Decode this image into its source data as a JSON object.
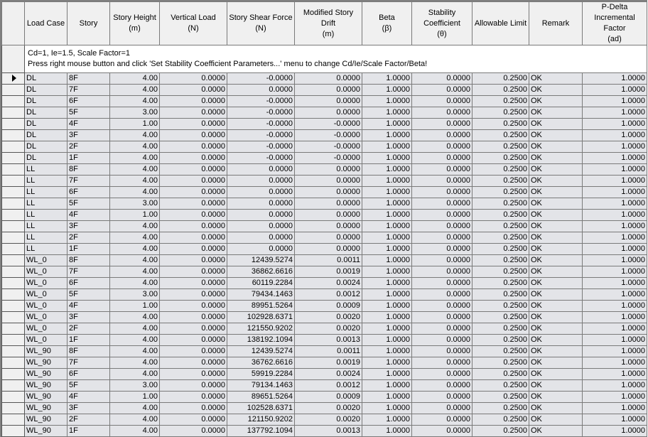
{
  "headers": [
    {
      "key": "load_case",
      "label": "Load Case"
    },
    {
      "key": "story",
      "label": "Story"
    },
    {
      "key": "story_height",
      "label": "Story Height\n(m)"
    },
    {
      "key": "vertical_load",
      "label": "Vertical Load\n(N)"
    },
    {
      "key": "story_shear",
      "label": "Story Shear Force\n(N)"
    },
    {
      "key": "drift",
      "label": "Modified Story Drift\n(m)"
    },
    {
      "key": "beta",
      "label": "Beta\n(β)"
    },
    {
      "key": "stability",
      "label": "Stability\nCoefficient\n(θ)"
    },
    {
      "key": "allowable",
      "label": "Allowable Limit"
    },
    {
      "key": "remark",
      "label": "Remark"
    },
    {
      "key": "pdelta",
      "label": "P-Delta\nIncremental\nFactor\n(ad)"
    }
  ],
  "info": {
    "line1": "Cd=1,  Ie=1.5,  Scale Factor=1",
    "line2": "Press right mouse button and click 'Set Stability Coefficient Parameters...' menu to change Cd/Ie/Scale Factor/Beta!"
  },
  "selected_row": 0,
  "rows": [
    [
      "DL",
      "8F",
      "4.00",
      "0.0000",
      "-0.0000",
      "0.0000",
      "1.0000",
      "0.0000",
      "0.2500",
      "OK",
      "1.0000"
    ],
    [
      "DL",
      "7F",
      "4.00",
      "0.0000",
      "0.0000",
      "0.0000",
      "1.0000",
      "0.0000",
      "0.2500",
      "OK",
      "1.0000"
    ],
    [
      "DL",
      "6F",
      "4.00",
      "0.0000",
      "-0.0000",
      "0.0000",
      "1.0000",
      "0.0000",
      "0.2500",
      "OK",
      "1.0000"
    ],
    [
      "DL",
      "5F",
      "3.00",
      "0.0000",
      "-0.0000",
      "0.0000",
      "1.0000",
      "0.0000",
      "0.2500",
      "OK",
      "1.0000"
    ],
    [
      "DL",
      "4F",
      "1.00",
      "0.0000",
      "-0.0000",
      "-0.0000",
      "1.0000",
      "0.0000",
      "0.2500",
      "OK",
      "1.0000"
    ],
    [
      "DL",
      "3F",
      "4.00",
      "0.0000",
      "-0.0000",
      "-0.0000",
      "1.0000",
      "0.0000",
      "0.2500",
      "OK",
      "1.0000"
    ],
    [
      "DL",
      "2F",
      "4.00",
      "0.0000",
      "-0.0000",
      "-0.0000",
      "1.0000",
      "0.0000",
      "0.2500",
      "OK",
      "1.0000"
    ],
    [
      "DL",
      "1F",
      "4.00",
      "0.0000",
      "-0.0000",
      "-0.0000",
      "1.0000",
      "0.0000",
      "0.2500",
      "OK",
      "1.0000"
    ],
    [
      "LL",
      "8F",
      "4.00",
      "0.0000",
      "0.0000",
      "0.0000",
      "1.0000",
      "0.0000",
      "0.2500",
      "OK",
      "1.0000"
    ],
    [
      "LL",
      "7F",
      "4.00",
      "0.0000",
      "0.0000",
      "0.0000",
      "1.0000",
      "0.0000",
      "0.2500",
      "OK",
      "1.0000"
    ],
    [
      "LL",
      "6F",
      "4.00",
      "0.0000",
      "0.0000",
      "0.0000",
      "1.0000",
      "0.0000",
      "0.2500",
      "OK",
      "1.0000"
    ],
    [
      "LL",
      "5F",
      "3.00",
      "0.0000",
      "0.0000",
      "0.0000",
      "1.0000",
      "0.0000",
      "0.2500",
      "OK",
      "1.0000"
    ],
    [
      "LL",
      "4F",
      "1.00",
      "0.0000",
      "0.0000",
      "0.0000",
      "1.0000",
      "0.0000",
      "0.2500",
      "OK",
      "1.0000"
    ],
    [
      "LL",
      "3F",
      "4.00",
      "0.0000",
      "0.0000",
      "0.0000",
      "1.0000",
      "0.0000",
      "0.2500",
      "OK",
      "1.0000"
    ],
    [
      "LL",
      "2F",
      "4.00",
      "0.0000",
      "0.0000",
      "0.0000",
      "1.0000",
      "0.0000",
      "0.2500",
      "OK",
      "1.0000"
    ],
    [
      "LL",
      "1F",
      "4.00",
      "0.0000",
      "0.0000",
      "0.0000",
      "1.0000",
      "0.0000",
      "0.2500",
      "OK",
      "1.0000"
    ],
    [
      "WL_0",
      "8F",
      "4.00",
      "0.0000",
      "12439.5274",
      "0.0011",
      "1.0000",
      "0.0000",
      "0.2500",
      "OK",
      "1.0000"
    ],
    [
      "WL_0",
      "7F",
      "4.00",
      "0.0000",
      "36862.6616",
      "0.0019",
      "1.0000",
      "0.0000",
      "0.2500",
      "OK",
      "1.0000"
    ],
    [
      "WL_0",
      "6F",
      "4.00",
      "0.0000",
      "60119.2284",
      "0.0024",
      "1.0000",
      "0.0000",
      "0.2500",
      "OK",
      "1.0000"
    ],
    [
      "WL_0",
      "5F",
      "3.00",
      "0.0000",
      "79434.1463",
      "0.0012",
      "1.0000",
      "0.0000",
      "0.2500",
      "OK",
      "1.0000"
    ],
    [
      "WL_0",
      "4F",
      "1.00",
      "0.0000",
      "89951.5264",
      "0.0009",
      "1.0000",
      "0.0000",
      "0.2500",
      "OK",
      "1.0000"
    ],
    [
      "WL_0",
      "3F",
      "4.00",
      "0.0000",
      "102928.6371",
      "0.0020",
      "1.0000",
      "0.0000",
      "0.2500",
      "OK",
      "1.0000"
    ],
    [
      "WL_0",
      "2F",
      "4.00",
      "0.0000",
      "121550.9202",
      "0.0020",
      "1.0000",
      "0.0000",
      "0.2500",
      "OK",
      "1.0000"
    ],
    [
      "WL_0",
      "1F",
      "4.00",
      "0.0000",
      "138192.1094",
      "0.0013",
      "1.0000",
      "0.0000",
      "0.2500",
      "OK",
      "1.0000"
    ],
    [
      "WL_90",
      "8F",
      "4.00",
      "0.0000",
      "12439.5274",
      "0.0011",
      "1.0000",
      "0.0000",
      "0.2500",
      "OK",
      "1.0000"
    ],
    [
      "WL_90",
      "7F",
      "4.00",
      "0.0000",
      "36762.6616",
      "0.0019",
      "1.0000",
      "0.0000",
      "0.2500",
      "OK",
      "1.0000"
    ],
    [
      "WL_90",
      "6F",
      "4.00",
      "0.0000",
      "59919.2284",
      "0.0024",
      "1.0000",
      "0.0000",
      "0.2500",
      "OK",
      "1.0000"
    ],
    [
      "WL_90",
      "5F",
      "3.00",
      "0.0000",
      "79134.1463",
      "0.0012",
      "1.0000",
      "0.0000",
      "0.2500",
      "OK",
      "1.0000"
    ],
    [
      "WL_90",
      "4F",
      "1.00",
      "0.0000",
      "89651.5264",
      "0.0009",
      "1.0000",
      "0.0000",
      "0.2500",
      "OK",
      "1.0000"
    ],
    [
      "WL_90",
      "3F",
      "4.00",
      "0.0000",
      "102528.6371",
      "0.0020",
      "1.0000",
      "0.0000",
      "0.2500",
      "OK",
      "1.0000"
    ],
    [
      "WL_90",
      "2F",
      "4.00",
      "0.0000",
      "121150.9202",
      "0.0020",
      "1.0000",
      "0.0000",
      "0.2500",
      "OK",
      "1.0000"
    ],
    [
      "WL_90",
      "1F",
      "4.00",
      "0.0000",
      "137792.1094",
      "0.0013",
      "1.0000",
      "0.0000",
      "0.2500",
      "OK",
      "1.0000"
    ]
  ]
}
